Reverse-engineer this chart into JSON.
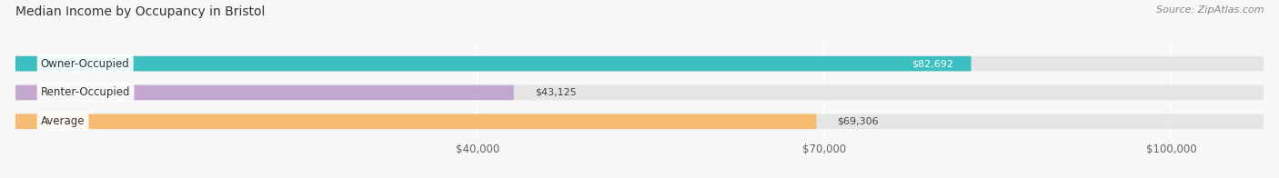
{
  "title": "Median Income by Occupancy in Bristol",
  "source": "Source: ZipAtlas.com",
  "categories": [
    "Owner-Occupied",
    "Renter-Occupied",
    "Average"
  ],
  "values": [
    82692,
    43125,
    69306
  ],
  "labels": [
    "$82,692",
    "$43,125",
    "$69,306"
  ],
  "bar_colors": [
    "#3bbfc0",
    "#c4a8d0",
    "#f5bc72"
  ],
  "label_colors": [
    "white",
    "#555555",
    "#555555"
  ],
  "label_inside": [
    true,
    false,
    false
  ],
  "x_ticks": [
    40000,
    70000,
    100000
  ],
  "x_tick_labels": [
    "$40,000",
    "$70,000",
    "$100,000"
  ],
  "x_min": 0,
  "x_max": 108000,
  "background_color": "#f7f7f7",
  "bar_track_color": "#e5e5e5",
  "title_fontsize": 10,
  "source_fontsize": 8,
  "label_fontsize": 8,
  "category_fontsize": 8.5,
  "tick_fontsize": 8.5,
  "grid_color": "#cccccc"
}
